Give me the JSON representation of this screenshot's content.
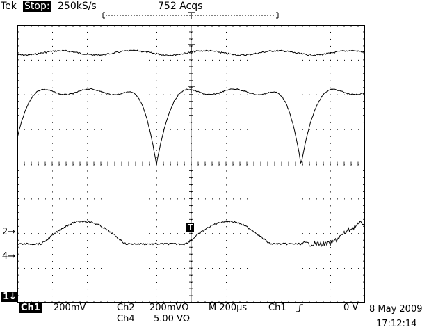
{
  "header": {
    "brand": "Tek",
    "run_state": "Stop:",
    "sample_rate": "250kS/s",
    "acquisitions": "752 Acqs"
  },
  "markers": {
    "ch1_ground": "1↓",
    "ch2_ground": "2→",
    "ch4_ground": "4→"
  },
  "footer": {
    "ch1_label": "Ch1",
    "ch1_scale": "200mV",
    "ch2_label": "Ch2",
    "ch2_scale": "200mVΩ",
    "ch4_label": "Ch4",
    "ch4_scale": "5.00 VΩ",
    "timebase": "M 200µs",
    "trigger_source": "Ch1",
    "trigger_slope_icon": "rising-edge-icon",
    "trigger_level": "0 V",
    "date": "8 May 2009",
    "time": "17:12:14"
  },
  "colors": {
    "background": "#ffffff",
    "trace": "#000000",
    "graticule": "#000000"
  }
}
